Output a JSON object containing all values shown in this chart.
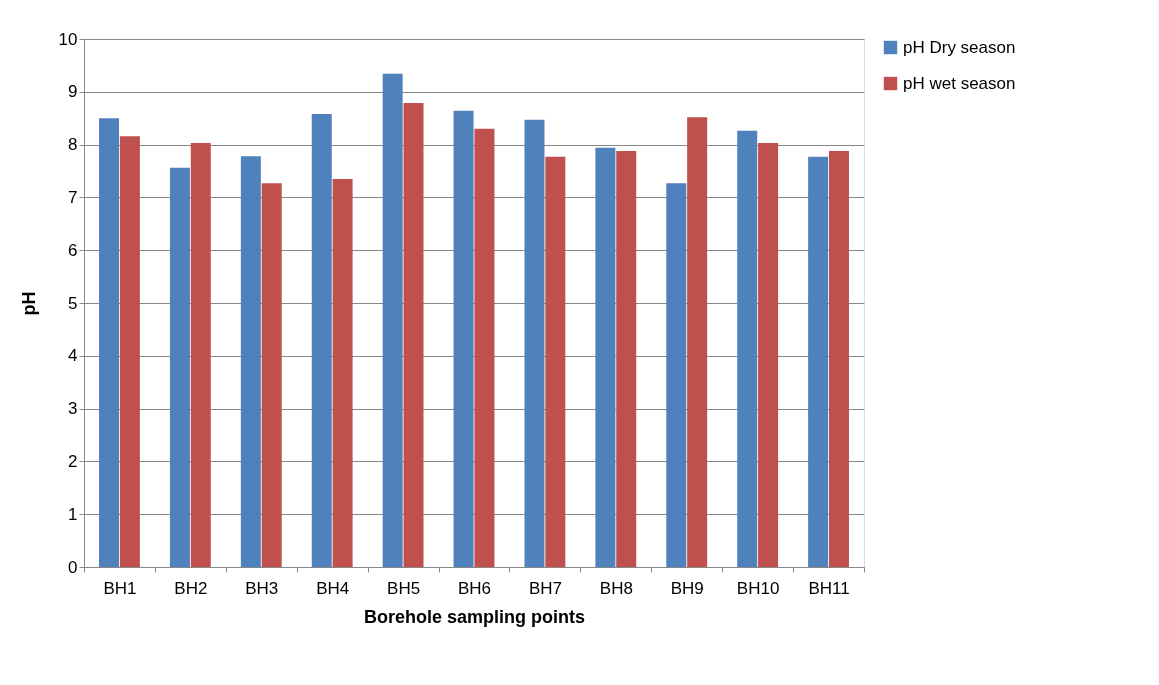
{
  "chart_data": {
    "type": "bar",
    "xlabel": "Borehole sampling points",
    "ylabel": "pH",
    "categories": [
      "BH1",
      "BH2",
      "BH3",
      "BH4",
      "BH5",
      "BH6",
      "BH7",
      "BH8",
      "BH9",
      "BH10",
      "BH11"
    ],
    "series": [
      {
        "name": "pH Dry season",
        "color": "#4f81bd",
        "values": [
          8.5,
          7.56,
          7.78,
          8.58,
          9.34,
          8.64,
          8.47,
          7.94,
          7.27,
          8.26,
          7.77
        ]
      },
      {
        "name": "pH wet season",
        "color": "#c0504d",
        "values": [
          8.16,
          8.03,
          7.27,
          7.35,
          8.79,
          8.3,
          7.77,
          7.88,
          8.52,
          8.03,
          7.88
        ]
      }
    ],
    "ylim": [
      0,
      10
    ],
    "yticks": [
      0,
      1,
      2,
      3,
      4,
      5,
      6,
      7,
      8,
      9,
      10
    ],
    "grid": "y",
    "legend": "right"
  }
}
